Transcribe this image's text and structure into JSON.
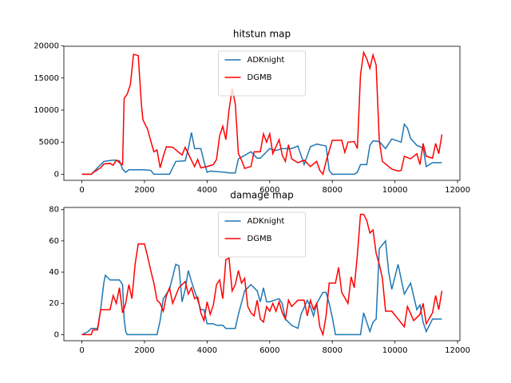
{
  "chart_data": [
    {
      "type": "line",
      "title": "hitstun map",
      "legend": "upper center",
      "xlim": [
        -575,
        12075
      ],
      "ylim": [
        -950,
        19950
      ],
      "xticks": [
        0,
        2000,
        4000,
        6000,
        8000,
        10000,
        12000
      ],
      "yticks": [
        0,
        5000,
        10000,
        15000,
        20000
      ],
      "series": [
        {
          "name": "ADKnight",
          "color": "#1f77b4",
          "x": [
            0,
            300,
            400,
            500,
            700,
            1000,
            1200,
            1300,
            1400,
            1500,
            2000,
            2200,
            2300,
            2800,
            2900,
            3000,
            3300,
            3400,
            3500,
            3600,
            3800,
            3900,
            4000,
            4100,
            4600,
            4700,
            4900,
            5000,
            5400,
            5600,
            5700,
            6000,
            6200,
            6400,
            6700,
            6900,
            7100,
            7300,
            7500,
            7700,
            7800,
            7900,
            8000,
            8700,
            8800,
            8900,
            9100,
            9200,
            9300,
            9500,
            9700,
            9900,
            10200,
            10300,
            10400,
            10500,
            10700,
            10900,
            11000,
            11200,
            11500
          ],
          "values": [
            0,
            0,
            500,
            1000,
            2000,
            2200,
            2100,
            800,
            300,
            700,
            700,
            600,
            0,
            0,
            1000,
            2000,
            2100,
            4000,
            6500,
            4000,
            4000,
            2000,
            300,
            500,
            300,
            200,
            200,
            2400,
            3500,
            2500,
            2500,
            4000,
            3700,
            4000,
            4000,
            4400,
            1500,
            4300,
            4700,
            4500,
            4400,
            600,
            0,
            0,
            300,
            1500,
            1500,
            4500,
            5200,
            5100,
            4000,
            5500,
            5000,
            7800,
            7200,
            5600,
            4500,
            4100,
            1200,
            1800,
            1800
          ]
        },
        {
          "name": "DGMB",
          "color": "#ff0000",
          "x": [
            0,
            300,
            400,
            500,
            600,
            700,
            900,
            1000,
            1100,
            1200,
            1300,
            1350,
            1450,
            1550,
            1650,
            1800,
            1900,
            1950,
            2100,
            2200,
            2300,
            2400,
            2500,
            2600,
            2700,
            2900,
            3200,
            3300,
            3400,
            3500,
            3600,
            3700,
            3800,
            4000,
            4200,
            4300,
            4400,
            4500,
            4600,
            4700,
            4800,
            4900,
            5000,
            5100,
            5200,
            5400,
            5500,
            5700,
            5800,
            5900,
            6000,
            6100,
            6300,
            6400,
            6500,
            6600,
            6700,
            6900,
            7100,
            7300,
            7500,
            7600,
            7700,
            7800,
            8000,
            8300,
            8400,
            8500,
            8700,
            8800,
            8900,
            9000,
            9100,
            9200,
            9300,
            9400,
            9500,
            9600,
            9800,
            9900,
            10100,
            10200,
            10300,
            10500,
            10700,
            10800,
            10900,
            11000,
            11200,
            11300,
            11400,
            11500
          ],
          "values": [
            0,
            0,
            400,
            700,
            1000,
            1600,
            1700,
            1400,
            2200,
            1800,
            1500,
            11800,
            12500,
            14000,
            18700,
            18500,
            11000,
            8500,
            7000,
            5200,
            3500,
            3800,
            1000,
            2800,
            4300,
            4200,
            3000,
            4200,
            3200,
            2200,
            1200,
            2300,
            1000,
            1200,
            1500,
            2300,
            6000,
            7500,
            5400,
            10000,
            13300,
            11000,
            3200,
            2200,
            900,
            1200,
            3500,
            3500,
            6300,
            5000,
            6300,
            3200,
            5400,
            3000,
            2000,
            4600,
            2400,
            1800,
            2200,
            1200,
            2000,
            600,
            0,
            2000,
            5300,
            5300,
            3400,
            5000,
            5100,
            4000,
            15500,
            19000,
            18000,
            16500,
            18600,
            17000,
            5200,
            2000,
            1200,
            800,
            500,
            600,
            2800,
            2400,
            3200,
            1500,
            4800,
            2800,
            2500,
            4800,
            3200,
            6200
          ]
        }
      ]
    },
    {
      "type": "line",
      "title": "damage map",
      "legend": "upper center",
      "xlim": [
        -575,
        12075
      ],
      "ylim": [
        -3.875,
        81.375
      ],
      "xticks": [
        0,
        2000,
        4000,
        6000,
        8000,
        10000,
        12000
      ],
      "yticks": [
        0,
        20,
        40,
        60,
        80
      ],
      "series": [
        {
          "name": "ADKnight",
          "color": "#1f77b4",
          "x": [
            0,
            200,
            300,
            500,
            600,
            700,
            750,
            900,
            1200,
            1300,
            1350,
            1400,
            1450,
            2400,
            2500,
            2600,
            2800,
            3000,
            3100,
            3200,
            3300,
            3400,
            3500,
            3600,
            3800,
            3900,
            4000,
            4200,
            4300,
            4500,
            4600,
            4900,
            5000,
            5200,
            5400,
            5600,
            5700,
            5800,
            5900,
            6000,
            6300,
            6400,
            6500,
            6700,
            6900,
            7000,
            7200,
            7300,
            7400,
            7500,
            7700,
            7800,
            7900,
            8000,
            8100,
            8900,
            9000,
            9200,
            9300,
            9400,
            9500,
            9700,
            9800,
            9900,
            10100,
            10300,
            10500,
            10700,
            10800,
            10900,
            11000,
            11200,
            11500
          ],
          "values": [
            0,
            2,
            4,
            4,
            16,
            33,
            38,
            35,
            35,
            32,
            10,
            2,
            0,
            0,
            9,
            23,
            29,
            45,
            44,
            21,
            29,
            41,
            34,
            28,
            16,
            16,
            7,
            7,
            6,
            6,
            4,
            4,
            13,
            28,
            32,
            28,
            21,
            30,
            21,
            21,
            23,
            20,
            10,
            6,
            4,
            13,
            22,
            18,
            12,
            20,
            27,
            27,
            20,
            11,
            0,
            0,
            14,
            2,
            8,
            10,
            55,
            60,
            40,
            29,
            45,
            26,
            33,
            16,
            19,
            8,
            2,
            10,
            10
          ]
        },
        {
          "name": "DGMB",
          "color": "#ff0000",
          "x": [
            0,
            300,
            350,
            500,
            600,
            900,
            1000,
            1100,
            1200,
            1300,
            1400,
            1500,
            1600,
            1700,
            1800,
            2000,
            2100,
            2200,
            2300,
            2400,
            2500,
            2600,
            2700,
            2800,
            2900,
            3100,
            3300,
            3400,
            3500,
            3600,
            3700,
            3800,
            3900,
            4000,
            4100,
            4200,
            4300,
            4400,
            4500,
            4600,
            4700,
            4800,
            4900,
            5000,
            5100,
            5200,
            5300,
            5400,
            5500,
            5600,
            5700,
            5800,
            5900,
            6000,
            6100,
            6200,
            6300,
            6400,
            6500,
            6600,
            6700,
            6800,
            6900,
            7100,
            7200,
            7300,
            7400,
            7500,
            7600,
            7700,
            7800,
            7900,
            8100,
            8200,
            8300,
            8500,
            8600,
            8700,
            8800,
            8900,
            9000,
            9100,
            9200,
            9300,
            9400,
            9500,
            9600,
            9700,
            9900,
            10100,
            10300,
            10400,
            10600,
            10800,
            10900,
            11000,
            11200,
            11300,
            11400,
            11500
          ],
          "values": [
            0,
            0,
            3,
            3,
            16,
            16,
            25,
            20,
            30,
            14,
            20,
            32,
            23,
            45,
            58,
            58,
            50,
            41,
            33,
            22,
            20,
            15,
            25,
            30,
            20,
            30,
            34,
            26,
            30,
            23,
            24,
            14,
            9,
            21,
            13,
            19,
            32,
            35,
            23,
            48,
            49,
            28,
            32,
            41,
            33,
            36,
            18,
            14,
            12,
            22,
            10,
            8,
            18,
            15,
            20,
            15,
            21,
            14,
            10,
            22,
            18,
            20,
            22,
            22,
            12,
            22,
            16,
            20,
            5,
            0,
            12,
            33,
            33,
            43,
            27,
            20,
            37,
            30,
            51,
            77,
            77,
            73,
            65,
            67,
            52,
            45,
            36,
            15,
            15,
            10,
            5,
            18,
            9,
            13,
            20,
            7,
            14,
            25,
            16,
            28
          ]
        }
      ]
    }
  ]
}
